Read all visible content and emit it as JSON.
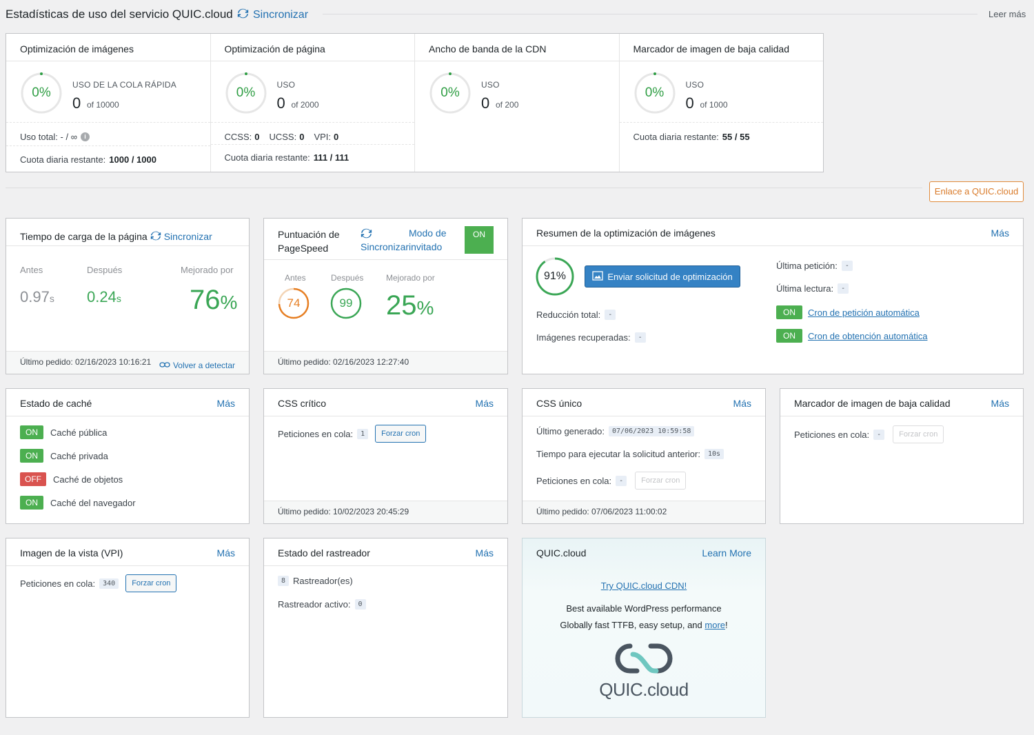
{
  "header": {
    "title": "Estadísticas de uso del servicio QUIC.cloud",
    "sync_label": "Sincronizar",
    "read_more": "Leer más"
  },
  "usage": {
    "columns": [
      {
        "title": "Optimización de imágenes",
        "pct": "0%",
        "label": "USO DE LA COLA RÁPIDA",
        "value": "0",
        "of": "of 10000",
        "row1": "Uso total: - / ∞",
        "row2_label": "Cuota diaria restante:",
        "row2_value": "1000 / 1000"
      },
      {
        "title": "Optimización de página",
        "pct": "0%",
        "label": "USO",
        "value": "0",
        "of": "of 2000",
        "ccss_label": "CCSS:",
        "ccss": "0",
        "ucss_label": "UCSS:",
        "ucss": "0",
        "vpi_label": "VPI:",
        "vpi": "0",
        "row2_label": "Cuota diaria restante:",
        "row2_value": "111 / 111"
      },
      {
        "title": "Ancho de banda de la CDN",
        "pct": "0%",
        "label": "USO",
        "value": "0",
        "of": "of 200"
      },
      {
        "title": "Marcador de imagen de baja calidad",
        "pct": "0%",
        "label": "USO",
        "value": "0",
        "of": "of 1000",
        "row1_label": "Cuota diaria restante:",
        "row1_value": "55 / 55"
      }
    ]
  },
  "link_button": "Enlace a QUIC.cloud",
  "load_time": {
    "title": "Tiempo de carga de la página",
    "sync": "Sincronizar",
    "before_label": "Antes",
    "after_label": "Después",
    "improved_label": "Mejorado por",
    "before": "0.97",
    "before_unit": "s",
    "after": "0.24",
    "after_unit": "s",
    "improved": "76",
    "improved_unit": "%",
    "last": "Último pedido: 02/16/2023 10:16:21",
    "redetect": "Volver a detectar"
  },
  "pagespeed": {
    "title1": "Puntuación de",
    "title2": "PageSpeed",
    "sync": "Sincronizar",
    "guest1": "Modo de",
    "guest2": "invitado",
    "toggle": "ON",
    "before_label": "Antes",
    "after_label": "Después",
    "improved_label": "Mejorado por",
    "before": "74",
    "after": "99",
    "improved": "25",
    "improved_unit": "%",
    "last": "Último pedido: 02/16/2023 12:27:40"
  },
  "img_summary": {
    "title": "Resumen de la optimización de imágenes",
    "more": "Más",
    "pct": "91%",
    "button": "Enviar solicitud de optimización",
    "reduction_label": "Reducción total:",
    "reduction": "-",
    "recovered_label": "Imágenes recuperadas:",
    "recovered": "-",
    "last_req_label": "Última petición:",
    "last_req": "-",
    "last_read_label": "Última lectura:",
    "last_read": "-",
    "cron1_state": "ON",
    "cron1": "Cron de petición automática",
    "cron2_state": "ON",
    "cron2": "Cron de obtención automática"
  },
  "cache": {
    "title": "Estado de caché",
    "more": "Más",
    "items": [
      {
        "state": "ON",
        "label": "Caché pública"
      },
      {
        "state": "ON",
        "label": "Caché privada"
      },
      {
        "state": "OFF",
        "label": "Caché de objetos"
      },
      {
        "state": "ON",
        "label": "Caché del navegador"
      }
    ]
  },
  "ccss": {
    "title": "CSS crítico",
    "more": "Más",
    "queue_label": "Peticiones en cola:",
    "queue": "1",
    "button": "Forzar cron",
    "last": "Último pedido: 10/02/2023 20:45:29"
  },
  "ucss": {
    "title": "CSS único",
    "more": "Más",
    "generated_label": "Último generado:",
    "generated": "07/06/2023 10:59:58",
    "time_label": "Tiempo para ejecutar la solicitud anterior:",
    "time": "10s",
    "queue_label": "Peticiones en cola:",
    "queue": "-",
    "button": "Forzar cron",
    "last": "Último pedido: 07/06/2023 11:00:02"
  },
  "lqip": {
    "title": "Marcador de imagen de baja calidad",
    "more": "Más",
    "queue_label": "Peticiones en cola:",
    "queue": "-",
    "button": "Forzar cron"
  },
  "vpi": {
    "title": "Imagen de la vista (VPI)",
    "more": "Más",
    "queue_label": "Peticiones en cola:",
    "queue": "340",
    "button": "Forzar cron"
  },
  "crawler": {
    "title": "Estado del rastreador",
    "more": "Más",
    "count": "8",
    "count_label": "Rastreador(es)",
    "active_label": "Rastreador activo:",
    "active": "0"
  },
  "quic": {
    "title": "QUIC.cloud",
    "learn": "Learn More",
    "try": "Try QUIC.cloud CDN!",
    "line1": "Best available WordPress performance",
    "line2": "Globally fast TTFB, easy setup, and",
    "line2_link": "more",
    "line2_end": "!",
    "logo_text_a": "QUIC",
    "logo_text_b": ".cloud"
  },
  "colors": {
    "accent": "#2271b1",
    "green": "#4caf50",
    "red": "#d9534f",
    "orange": "#e67e22"
  }
}
